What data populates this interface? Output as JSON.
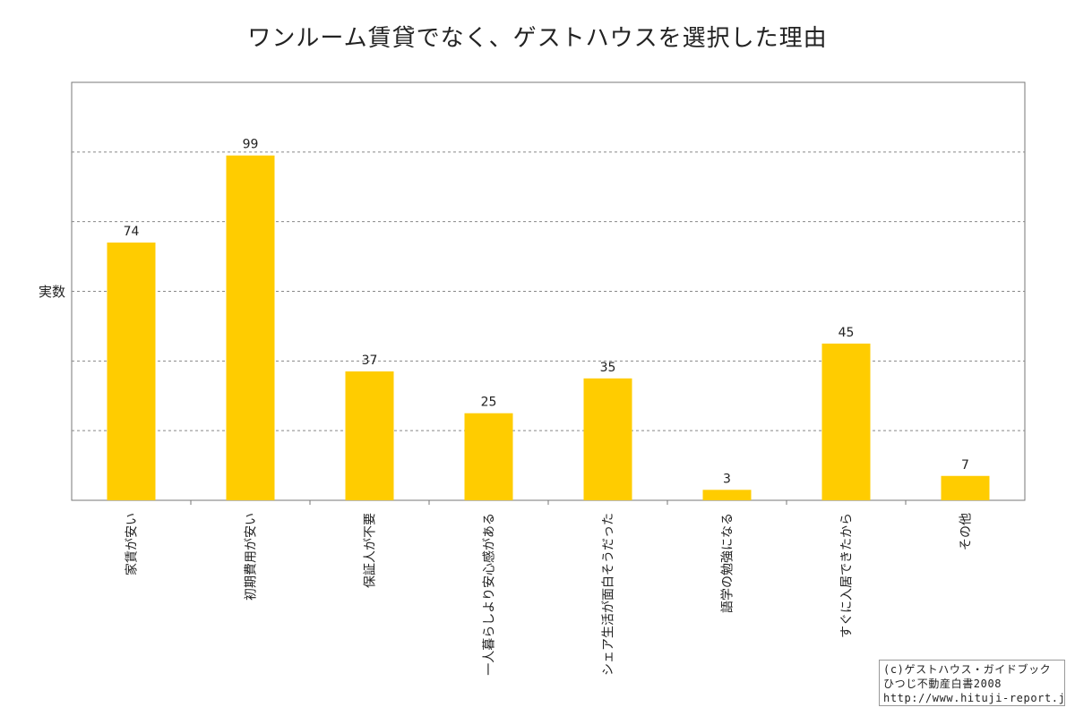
{
  "chart_data": {
    "type": "bar",
    "title": "ワンルーム賃貸でなく、ゲストハウスを選択した理由",
    "ylabel": "実数",
    "xlabel": "",
    "ylim": [
      0,
      120
    ],
    "grid": true,
    "categories": [
      "家賃が安い",
      "初期費用が安い",
      "保証人が不要",
      "一人暮らしより安心感がある",
      "シェア生活が面白そうだった",
      "語学の勉強になる",
      "すぐに入居できたから",
      "その他"
    ],
    "values": [
      74,
      99,
      37,
      25,
      35,
      3,
      45,
      7
    ],
    "bar_color": "#ffcc00"
  },
  "credit": {
    "line1": "(c)ゲストハウス・ガイドブック",
    "line2": "ひつじ不動産白書2008",
    "line3": "http://www.hituji-report.jp/"
  }
}
